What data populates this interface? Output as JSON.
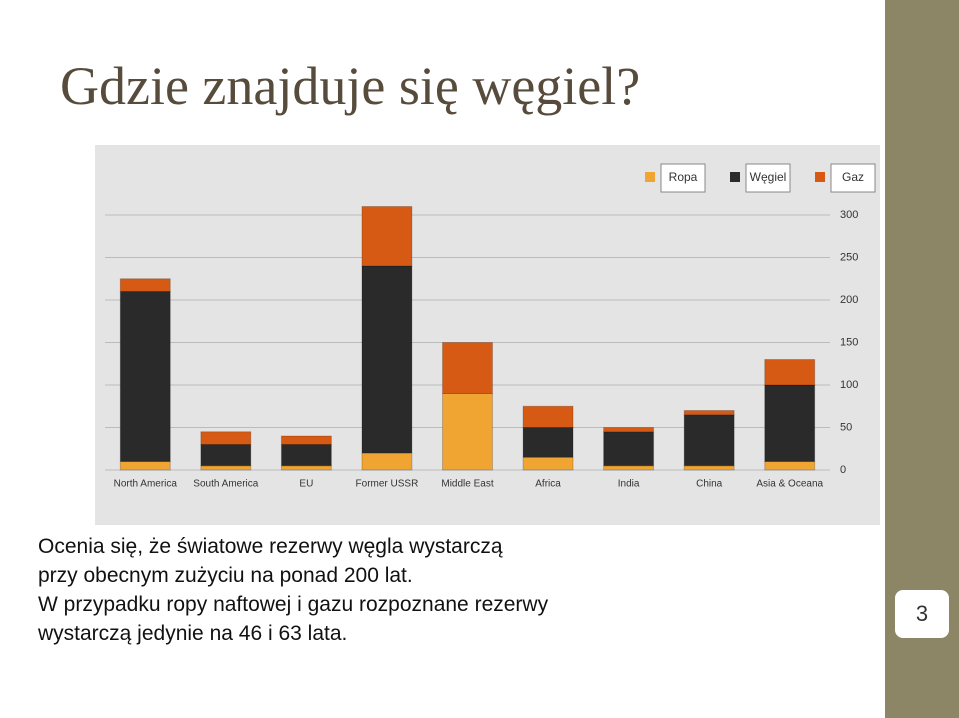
{
  "title": "Gdzie znajduje się węgiel?",
  "body": [
    "Ocenia się, że światowe rezerwy węgla wystarczą",
    "przy obecnym zużyciu na ponad 200 lat.",
    "W przypadku ropy naftowej i gazu rozpoznane rezerwy",
    "wystarczą jedynie na 46 i 63 lata."
  ],
  "slide_number": "3",
  "chart_data": {
    "type": "stacked-bar",
    "categories": [
      "North America",
      "South America",
      "EU",
      "Former USSR",
      "Middle East",
      "Africa",
      "India",
      "China",
      "Asia & Oceana"
    ],
    "series": [
      {
        "name": "Ropa",
        "color": "#f0a431",
        "values": [
          10,
          5,
          5,
          20,
          90,
          15,
          5,
          5,
          10
        ]
      },
      {
        "name": "Węgiel",
        "color": "#2a2a2a",
        "values": [
          200,
          25,
          25,
          220,
          0,
          35,
          40,
          60,
          90
        ]
      },
      {
        "name": "Gaz",
        "color": "#d65a14",
        "values": [
          15,
          15,
          10,
          70,
          60,
          25,
          5,
          5,
          30
        ]
      }
    ],
    "ylim": [
      0,
      300
    ],
    "yticks": [
      0,
      50,
      100,
      150,
      200,
      250,
      300
    ],
    "grid": true
  }
}
